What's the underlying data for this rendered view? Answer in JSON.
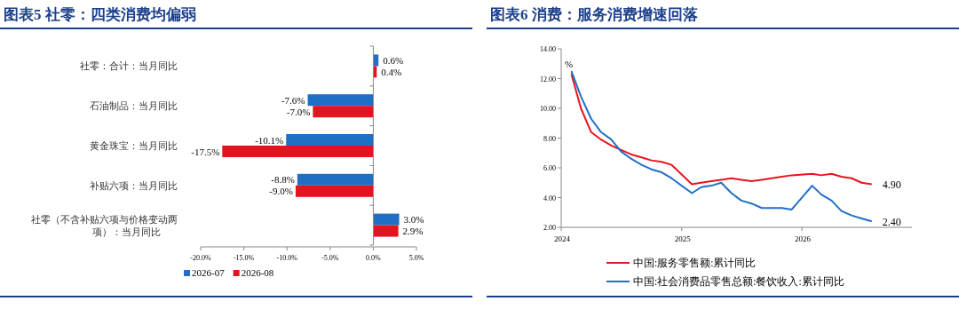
{
  "chart_data": [
    {
      "type": "bar",
      "orientation": "horizontal",
      "title": "图表5 社零：四类消费均偏弱",
      "categories": [
        "社零：合计：当月同比",
        "石油制品：当月同比",
        "黄金珠宝：当月同比",
        "补贴六项：当月同比",
        "社零（不含补贴六项与价格变动两项）：当月同比"
      ],
      "series": [
        {
          "name": "2026-07",
          "color": "#1f6fc5",
          "values": [
            0.6,
            -7.6,
            -10.1,
            -8.8,
            3.0
          ],
          "value_labels": [
            "0.6%",
            "-7.6%",
            "-10.1%",
            "-8.8%",
            "3.0%"
          ]
        },
        {
          "name": "2026-08",
          "color": "#e3141f",
          "values": [
            0.4,
            -7.0,
            -17.5,
            -9.0,
            2.9
          ],
          "value_labels": [
            "0.4%",
            "-7.0%",
            "-17.5%",
            "-9.0%",
            "2.9%"
          ]
        }
      ],
      "xlim": [
        -20,
        5
      ],
      "xticks": [
        {
          "value": -20,
          "label": "-20.0%"
        },
        {
          "value": -15,
          "label": "-15.0%"
        },
        {
          "value": -10,
          "label": "-10.0%"
        },
        {
          "value": -5,
          "label": "-5.0%"
        },
        {
          "value": 0,
          "label": "0.0%"
        },
        {
          "value": 5,
          "label": "5.0%"
        }
      ],
      "legend": "bottom"
    },
    {
      "type": "line",
      "title": "图表6 消费：服务消费增速回落",
      "ylabel": "%",
      "x": [
        "2024-02",
        "2024-03",
        "2024-04",
        "2024-05",
        "2024-06",
        "2024-07",
        "2024-08",
        "2024-09",
        "2024-10",
        "2024-11",
        "2024-12",
        "2025-02",
        "2025-03",
        "2025-04",
        "2025-05",
        "2025-06",
        "2025-07",
        "2025-08",
        "2025-09",
        "2025-10",
        "2025-11",
        "2025-12",
        "2026-02",
        "2026-03",
        "2026-04",
        "2026-05",
        "2026-06",
        "2026-07",
        "2026-08"
      ],
      "series": [
        {
          "name": "中国:服务零售额:累计同比",
          "color": "#e8141e",
          "values": [
            12.3,
            10.0,
            8.4,
            7.9,
            7.5,
            7.2,
            6.9,
            6.7,
            6.5,
            6.4,
            6.2,
            4.9,
            5.0,
            5.1,
            5.2,
            5.3,
            5.2,
            5.1,
            5.2,
            5.3,
            5.4,
            5.5,
            5.6,
            5.5,
            5.6,
            5.4,
            5.3,
            5.0,
            4.9
          ]
        },
        {
          "name": "中国:社会消费品零售总额:餐饮收入:累计同比",
          "color": "#1f6fc5",
          "values": [
            12.5,
            10.8,
            9.3,
            8.4,
            7.9,
            7.1,
            6.6,
            6.2,
            5.9,
            5.7,
            5.3,
            4.3,
            4.7,
            4.8,
            5.0,
            4.3,
            3.8,
            3.6,
            3.3,
            3.3,
            3.3,
            3.2,
            4.8,
            4.2,
            3.8,
            3.1,
            2.8,
            2.6,
            2.4
          ]
        }
      ],
      "annotations": [
        {
          "text": "4.90",
          "x": "2026-08",
          "y": 4.9
        },
        {
          "text": "2.40",
          "x": "2026-08",
          "y": 2.4
        }
      ],
      "xlim": [
        "2024",
        "2026-12"
      ],
      "xticks": [
        "2024",
        "2025",
        "2026"
      ],
      "ylim": [
        2,
        14
      ],
      "yticks": [
        {
          "value": 2,
          "label": "2.00"
        },
        {
          "value": 4,
          "label": "4.00"
        },
        {
          "value": 6,
          "label": "6.00"
        },
        {
          "value": 8,
          "label": "8.00"
        },
        {
          "value": 10,
          "label": "10.00"
        },
        {
          "value": 12,
          "label": "12.00"
        },
        {
          "value": 14,
          "label": "14.00"
        }
      ],
      "legend": "bottom",
      "grid": false,
      "marker": "none",
      "line_style": "solid"
    }
  ]
}
